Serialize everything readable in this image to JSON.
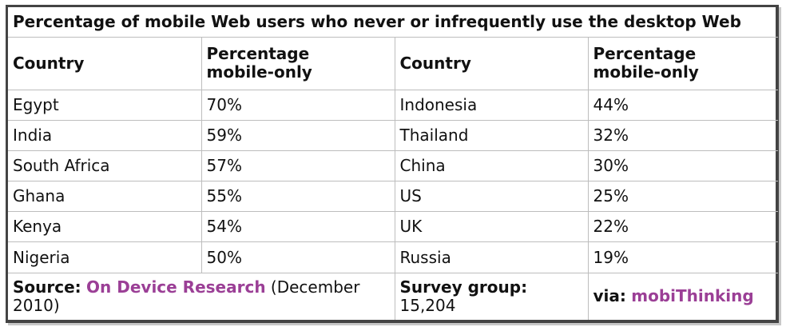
{
  "title": "Percentage of mobile Web users who never or infrequently use the desktop Web",
  "headers": {
    "country": "Country",
    "percentage_line1": "Percentage",
    "percentage_line2": "mobile-only"
  },
  "rows": [
    {
      "country_left": "Egypt",
      "pct_left": "70%",
      "country_right": "Indonesia",
      "pct_right": "44%"
    },
    {
      "country_left": "India",
      "pct_left": "59%",
      "country_right": "Thailand",
      "pct_right": "32%"
    },
    {
      "country_left": "South Africa",
      "pct_left": "57%",
      "country_right": "China",
      "pct_right": "30%"
    },
    {
      "country_left": "Ghana",
      "pct_left": "55%",
      "country_right": "US",
      "pct_right": "25%"
    },
    {
      "country_left": "Kenya",
      "pct_left": "54%",
      "country_right": "UK",
      "pct_right": "22%"
    },
    {
      "country_left": "Nigeria",
      "pct_left": "50%",
      "country_right": "Russia",
      "pct_right": "19%"
    }
  ],
  "footer": {
    "source_label": "Source:",
    "source_link": "On Device Research",
    "source_date": " (December 2010)",
    "survey_label": "Survey group:",
    "survey_value": "15,204",
    "via_label": "via:",
    "via_link": "mobiThinking"
  },
  "colors": {
    "link": "#9b3f96",
    "frame_border": "#444444",
    "cell_border": "#bdbdbd"
  }
}
